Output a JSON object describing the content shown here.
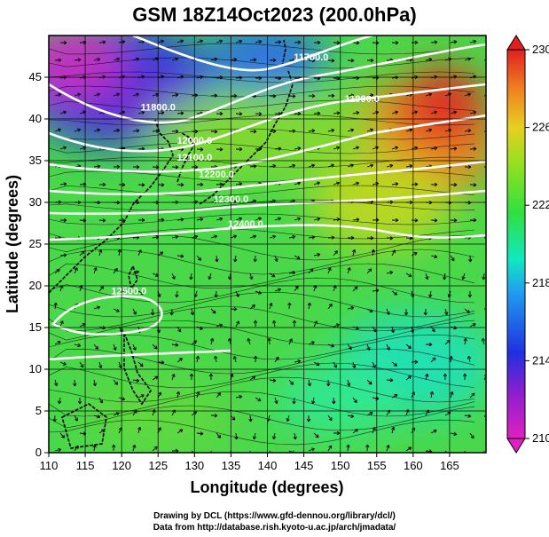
{
  "title": "GSM 18Z14Oct2023 (200.0hPa)",
  "credits": {
    "line1": "Drawing by DCL (https://www.gfd-dennou.org/library/dcl/)",
    "line2": "Data from http://database.rish.kyoto-u.ac.jp/arch/jmadata/"
  },
  "chart_data": {
    "type": "heatmap",
    "title": "GSM 18Z14Oct2023 (200.0hPa)",
    "xlabel": "Longitude (degrees)",
    "ylabel": "Latitude (degrees)",
    "xlim": [
      110,
      170
    ],
    "ylim": [
      0,
      50
    ],
    "x_ticks": [
      "110",
      "115",
      "120",
      "125",
      "130",
      "135",
      "140",
      "145",
      "150",
      "155",
      "160",
      "165"
    ],
    "y_ticks": [
      "0",
      "5",
      "10",
      "15",
      "20",
      "25",
      "30",
      "35",
      "40",
      "45"
    ],
    "grid": true,
    "colorbar": {
      "ticks": [
        "210",
        "214",
        "218",
        "222",
        "226",
        "230"
      ],
      "range": [
        210,
        230
      ],
      "colors": [
        "#e020c0",
        "#8a1fd0",
        "#2030e0",
        "#20a0f0",
        "#10e8c0",
        "#30e040",
        "#90e020",
        "#e8d020",
        "#f08020",
        "#e02020"
      ]
    },
    "contours": [
      {
        "label": "11700.0",
        "lon": 146,
        "lat": 47
      },
      {
        "label": "11800.0",
        "lon": 125,
        "lat": 41
      },
      {
        "label": "11900.0",
        "lon": 153,
        "lat": 42
      },
      {
        "label": "12000.0",
        "lon": 130,
        "lat": 37
      },
      {
        "label": "12100.0",
        "lon": 130,
        "lat": 35
      },
      {
        "label": "12200.0",
        "lon": 133,
        "lat": 33
      },
      {
        "label": "12300.0",
        "lon": 135,
        "lat": 30
      },
      {
        "label": "12400.0",
        "lon": 137,
        "lat": 27
      },
      {
        "label": "12500.0",
        "lon": 121,
        "lat": 19
      }
    ],
    "color_features": [
      {
        "name": "cold-northwest",
        "lon": 118,
        "lat": 45,
        "value": 212
      },
      {
        "name": "warm-northeast",
        "lon": 162,
        "lat": 40,
        "value": 228
      },
      {
        "name": "cool-southeast",
        "lon": 158,
        "lat": 12,
        "value": 219
      }
    ]
  }
}
